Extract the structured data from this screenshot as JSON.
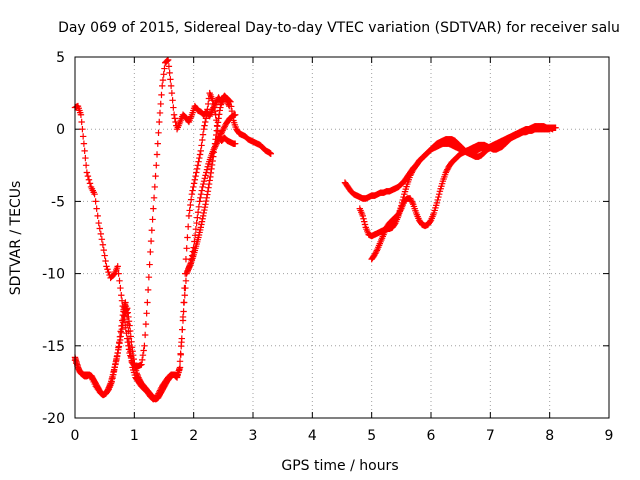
{
  "chart_data": {
    "type": "scatter",
    "title": "Day 069 of 2015, Sidereal Day-to-day VTEC variation (SDTVAR) for receiver salu",
    "xlabel": "GPS time / hours",
    "ylabel": "SDTVAR / TECUs",
    "xlim": [
      0,
      9
    ],
    "ylim": [
      -20,
      5
    ],
    "xticks": [
      0,
      1,
      2,
      3,
      4,
      5,
      6,
      7,
      8,
      9
    ],
    "yticks": [
      -20,
      -15,
      -10,
      -5,
      0,
      5
    ],
    "grid": true,
    "marker": "+",
    "series": [
      {
        "name": "SDTVAR",
        "color": "#ff0000",
        "segments": [
          {
            "x": [
              0.0,
              0.05,
              0.1,
              0.15,
              0.2,
              0.27,
              0.33,
              0.4,
              0.47,
              0.53,
              0.6,
              0.67,
              0.72,
              0.78,
              0.83,
              0.88,
              0.92,
              0.97,
              1.02,
              1.07,
              1.12,
              1.17,
              1.22,
              1.27,
              1.32,
              1.37,
              1.42,
              1.47,
              1.52,
              1.57,
              1.62,
              1.67,
              1.72,
              1.77,
              1.82,
              1.87,
              1.92,
              1.97,
              2.02,
              2.07,
              2.12,
              2.17,
              2.22,
              2.27,
              2.32,
              2.37,
              2.42,
              2.47,
              2.52,
              2.57,
              2.62,
              2.67,
              2.72,
              2.77,
              2.82,
              2.87,
              2.92,
              2.97,
              3.02,
              3.07,
              3.12,
              3.17,
              3.22,
              3.27,
              3.3
            ],
            "y": [
              1.5,
              1.6,
              1.0,
              -1.0,
              -3.0,
              -4.0,
              -4.5,
              -6.5,
              -8.0,
              -9.5,
              -10.3,
              -10.0,
              -9.5,
              -11.5,
              -13.0,
              -14.5,
              -15.5,
              -16.2,
              -16.5,
              -16.4,
              -16.3,
              -15.0,
              -12.0,
              -8.5,
              -5.5,
              -2.5,
              0.5,
              3.0,
              4.6,
              4.8,
              3.0,
              1.0,
              0.0,
              0.5,
              1.0,
              0.8,
              0.5,
              1.0,
              1.6,
              1.3,
              1.2,
              1.0,
              1.2,
              0.9,
              1.4,
              1.8,
              2.2,
              1.8,
              2.3,
              2.1,
              1.9,
              0.6,
              0.0,
              -0.3,
              -0.4,
              -0.5,
              -0.7,
              -0.8,
              -0.9,
              -1.0,
              -1.1,
              -1.3,
              -1.5,
              -1.6,
              -1.7
            ]
          },
          {
            "x": [
              0.0,
              0.08,
              0.15,
              0.22,
              0.28,
              0.35,
              0.42,
              0.47,
              0.52,
              0.57,
              0.62,
              0.67,
              0.72,
              0.77,
              0.82,
              0.85,
              0.88,
              0.92,
              0.97,
              1.02,
              1.07,
              1.12,
              1.17,
              1.22,
              1.27,
              1.32,
              1.37,
              1.42,
              1.47,
              1.52,
              1.57,
              1.62,
              1.67,
              1.72,
              1.77,
              1.82,
              1.87,
              1.92,
              1.97,
              2.02,
              2.07,
              2.12,
              2.17,
              2.22,
              2.27,
              2.32,
              2.37,
              2.42,
              2.47,
              2.52,
              2.57,
              2.62,
              2.67,
              2.7
            ],
            "y": [
              -16.0,
              -16.8,
              -17.0,
              -17.0,
              -17.2,
              -17.8,
              -18.2,
              -18.4,
              -18.3,
              -18.0,
              -17.5,
              -16.5,
              -15.5,
              -14.0,
              -12.5,
              -12.0,
              -13.0,
              -15.0,
              -16.5,
              -17.2,
              -17.5,
              -17.8,
              -18.0,
              -18.2,
              -18.5,
              -18.7,
              -18.6,
              -18.2,
              -17.8,
              -17.5,
              -17.2,
              -17.0,
              -17.0,
              -17.2,
              -16.5,
              -13.0,
              -9.0,
              -6.0,
              -4.5,
              -3.5,
              -2.5,
              -1.5,
              0.0,
              1.0,
              2.5,
              2.0,
              1.0,
              -0.5,
              -0.8,
              -0.6,
              -0.8,
              -0.9,
              -1.0,
              -1.0
            ]
          },
          {
            "x": [
              0.0,
              0.03,
              0.06,
              0.1,
              0.13,
              0.16,
              0.2,
              0.24,
              0.28,
              0.32,
              0.36,
              0.4,
              0.44,
              0.48,
              0.52,
              0.56,
              0.6,
              0.64,
              0.68,
              0.72,
              0.76,
              0.8,
              0.84,
              0.88,
              0.92,
              0.96,
              1.0,
              1.04,
              1.08,
              1.12,
              1.16,
              1.2,
              1.24,
              1.28,
              1.32,
              1.36,
              1.4,
              1.44,
              1.48,
              1.52,
              1.56,
              1.6,
              1.64,
              1.68,
              1.72,
              1.76,
              1.8,
              1.84,
              1.88,
              1.92,
              1.96,
              2.0,
              2.04,
              2.08,
              2.12,
              2.16,
              2.2,
              2.24,
              2.28,
              2.32,
              2.36,
              2.4,
              2.44,
              2.48,
              2.52,
              2.56,
              2.6
            ],
            "y": [
              -15.8,
              -16.2,
              -16.6,
              -16.9,
              -17.0,
              -17.1,
              -17.1,
              -17.0,
              -17.1,
              -17.4,
              -17.7,
              -18.0,
              -18.3,
              -18.4,
              -18.3,
              -18.0,
              -17.6,
              -17.0,
              -16.3,
              -15.5,
              -14.6,
              -13.6,
              -12.7,
              -12.4,
              -13.6,
              -15.1,
              -16.2,
              -16.9,
              -17.3,
              -17.6,
              -17.8,
              -18.0,
              -18.2,
              -18.4,
              -18.6,
              -18.7,
              -18.6,
              -18.3,
              -18.0,
              -17.7,
              -17.4,
              -17.2,
              -17.0,
              -17.0,
              -17.1,
              -16.6,
              -14.5,
              -12.0,
              -10.0,
              -9.6,
              -9.2,
              -8.7,
              -8.1,
              -7.5,
              -6.8,
              -6.0,
              -5.2,
              -4.3,
              -3.3,
              -2.2,
              -1.0,
              0.2,
              1.3,
              2.1,
              2.3,
              2.0,
              1.6
            ]
          },
          {
            "x": [
              1.9,
              1.95,
              2.0,
              2.05,
              2.1,
              2.15,
              2.2,
              2.25,
              2.3,
              2.35,
              2.4,
              2.45,
              2.5,
              2.55,
              2.6,
              2.65,
              2.7
            ],
            "y": [
              -9.8,
              -9.3,
              -8.2,
              -6.5,
              -5.0,
              -4.0,
              -3.2,
              -2.4,
              -1.8,
              -1.3,
              -0.9,
              -0.4,
              0.0,
              0.4,
              0.7,
              0.9,
              1.0
            ]
          },
          {
            "x": [
              4.55,
              4.6,
              4.65,
              4.7,
              4.75,
              4.8,
              4.85,
              4.9,
              4.95,
              5.0,
              5.05,
              5.1,
              5.15,
              5.2,
              5.25,
              5.3,
              5.35,
              5.4,
              5.45,
              5.5,
              5.55,
              5.6,
              5.65,
              5.7,
              5.75,
              5.8,
              5.85,
              5.9,
              5.95,
              6.0,
              6.05,
              6.1,
              6.15,
              6.2,
              6.25,
              6.3,
              6.35,
              6.4,
              6.45,
              6.5,
              6.55,
              6.6,
              6.65,
              6.7,
              6.75,
              6.8,
              6.85,
              6.9,
              6.95,
              7.0,
              7.05,
              7.1,
              7.15,
              7.2,
              7.25,
              7.3,
              7.35,
              7.4,
              7.45,
              7.5,
              7.55,
              7.6,
              7.65,
              7.7,
              7.75,
              7.8,
              7.85,
              7.9,
              7.95,
              8.0,
              8.05,
              8.1
            ],
            "y": [
              -3.7,
              -4.0,
              -4.3,
              -4.5,
              -4.6,
              -4.7,
              -4.8,
              -4.8,
              -4.7,
              -4.6,
              -4.6,
              -4.5,
              -4.4,
              -4.4,
              -4.3,
              -4.3,
              -4.2,
              -4.1,
              -4.0,
              -3.8,
              -3.6,
              -3.3,
              -3.0,
              -2.7,
              -2.5,
              -2.2,
              -2.0,
              -1.8,
              -1.6,
              -1.4,
              -1.2,
              -1.0,
              -0.9,
              -0.8,
              -0.7,
              -0.7,
              -0.7,
              -0.8,
              -1.0,
              -1.2,
              -1.4,
              -1.6,
              -1.7,
              -1.8,
              -1.9,
              -1.9,
              -1.8,
              -1.6,
              -1.4,
              -1.3,
              -1.2,
              -1.1,
              -1.0,
              -0.9,
              -0.8,
              -0.7,
              -0.6,
              -0.5,
              -0.4,
              -0.3,
              -0.2,
              -0.1,
              0.0,
              0.1,
              0.2,
              0.2,
              0.2,
              0.2,
              0.1,
              0.1,
              0.1,
              0.1
            ]
          },
          {
            "x": [
              4.8,
              4.85,
              4.9,
              4.95,
              5.0,
              5.05,
              5.1,
              5.15,
              5.2,
              5.25,
              5.3,
              5.35,
              5.4,
              5.45,
              5.5,
              5.55,
              5.6,
              5.65,
              5.7,
              5.75,
              5.8,
              5.85,
              5.9,
              5.95,
              6.0,
              6.05,
              6.1,
              6.15,
              6.2,
              6.25,
              6.3,
              6.35,
              6.4,
              6.45,
              6.5,
              6.55,
              6.6,
              6.65,
              6.7,
              6.75,
              6.8,
              6.85,
              6.9,
              6.95,
              7.0,
              7.05,
              7.1,
              7.15,
              7.2,
              7.25,
              7.3,
              7.35,
              7.4,
              7.45,
              7.5,
              7.55,
              7.6,
              7.65,
              7.7,
              7.75,
              7.8,
              7.85,
              7.9,
              7.95,
              8.0,
              8.05
            ],
            "y": [
              -5.5,
              -6.0,
              -6.8,
              -7.3,
              -7.4,
              -7.3,
              -7.2,
              -7.1,
              -7.0,
              -6.9,
              -6.9,
              -6.8,
              -6.5,
              -6.0,
              -5.3,
              -4.5,
              -3.8,
              -3.2,
              -2.8,
              -2.5,
              -2.2,
              -2.0,
              -1.8,
              -1.6,
              -1.4,
              -1.3,
              -1.2,
              -1.1,
              -1.0,
              -1.0,
              -1.0,
              -1.1,
              -1.2,
              -1.3,
              -1.4,
              -1.5,
              -1.6,
              -1.6,
              -1.6,
              -1.5,
              -1.4,
              -1.3,
              -1.3,
              -1.3,
              -1.2,
              -1.1,
              -1.0,
              -0.9,
              -0.8,
              -0.7,
              -0.6,
              -0.5,
              -0.4,
              -0.3,
              -0.2,
              -0.1,
              0.0,
              0.0,
              0.0,
              0.1,
              0.1,
              0.1,
              0.1,
              0.1,
              0.1,
              0.0
            ]
          },
          {
            "x": [
              5.0,
              5.05,
              5.1,
              5.15,
              5.2,
              5.25,
              5.3,
              5.35,
              5.4,
              5.45,
              5.5,
              5.55,
              5.6,
              5.65,
              5.7,
              5.75,
              5.8,
              5.85,
              5.9,
              5.95,
              6.0,
              6.05,
              6.1,
              6.15,
              6.2,
              6.25,
              6.3,
              6.35,
              6.4,
              6.45,
              6.5,
              6.55,
              6.6,
              6.65,
              6.7,
              6.75,
              6.8,
              6.85,
              6.9,
              6.95,
              7.0,
              7.05,
              7.1,
              7.15,
              7.2,
              7.25,
              7.3,
              7.35,
              7.4,
              7.45,
              7.5,
              7.55,
              7.6,
              7.65,
              7.7,
              7.75,
              7.8,
              7.85,
              7.9,
              7.95,
              8.0
            ],
            "y": [
              -9.0,
              -8.7,
              -8.3,
              -7.8,
              -7.3,
              -6.8,
              -6.5,
              -6.3,
              -6.1,
              -5.9,
              -5.5,
              -5.0,
              -4.8,
              -4.8,
              -5.2,
              -5.8,
              -6.3,
              -6.6,
              -6.7,
              -6.6,
              -6.3,
              -5.8,
              -5.1,
              -4.3,
              -3.6,
              -3.0,
              -2.6,
              -2.3,
              -2.1,
              -1.9,
              -1.7,
              -1.6,
              -1.5,
              -1.4,
              -1.3,
              -1.2,
              -1.1,
              -1.1,
              -1.1,
              -1.2,
              -1.3,
              -1.4,
              -1.4,
              -1.3,
              -1.2,
              -1.0,
              -0.8,
              -0.6,
              -0.5,
              -0.4,
              -0.3,
              -0.2,
              -0.2,
              -0.1,
              -0.1,
              0.0,
              0.0,
              0.0,
              0.0,
              0.0,
              0.0
            ]
          }
        ]
      }
    ]
  }
}
